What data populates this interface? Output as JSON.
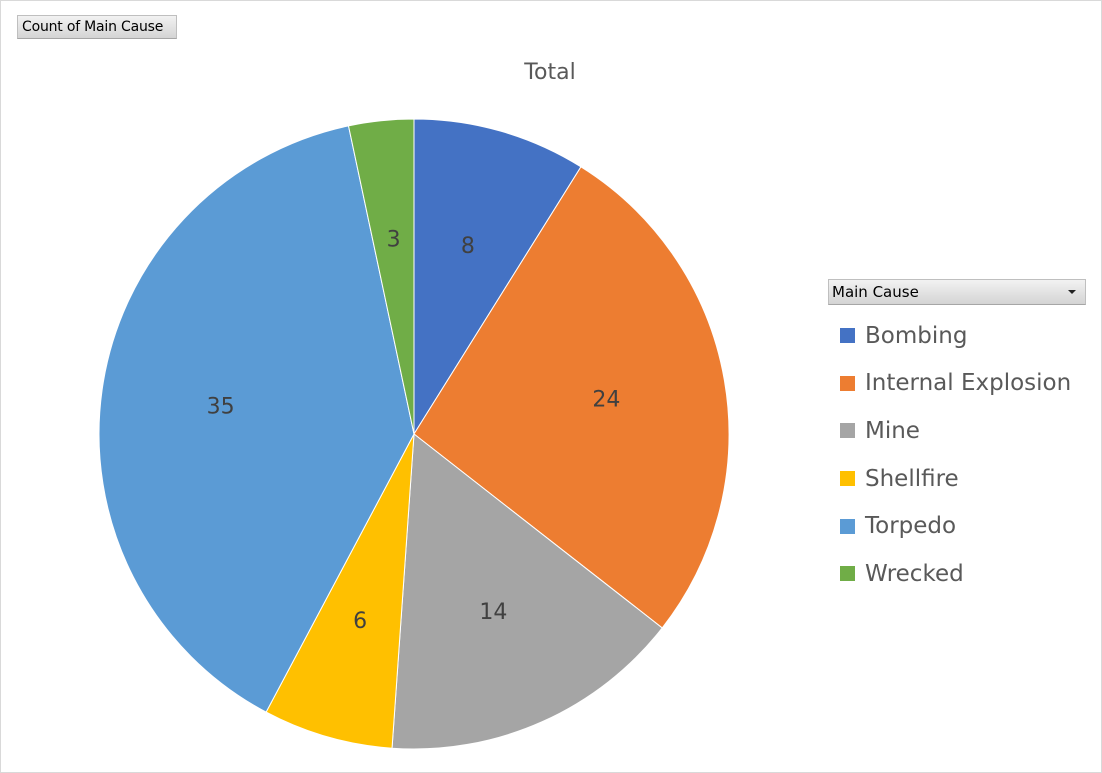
{
  "pivot_field_button": "Count of Main Cause",
  "legend_field_button": "Main Cause",
  "chart_data": {
    "type": "pie",
    "title": "Total",
    "categories": [
      "Bombing",
      "Internal Explosion",
      "Mine",
      "Shellfire",
      "Torpedo",
      "Wrecked"
    ],
    "values": [
      8,
      24,
      14,
      6,
      35,
      3
    ],
    "colors": [
      "#4472c4",
      "#ed7d31",
      "#a5a5a5",
      "#ffc000",
      "#5b9bd5",
      "#70ad47"
    ],
    "start_angle": "12 o'clock",
    "direction": "clockwise",
    "data_labels": "inside",
    "legend_position": "right"
  }
}
